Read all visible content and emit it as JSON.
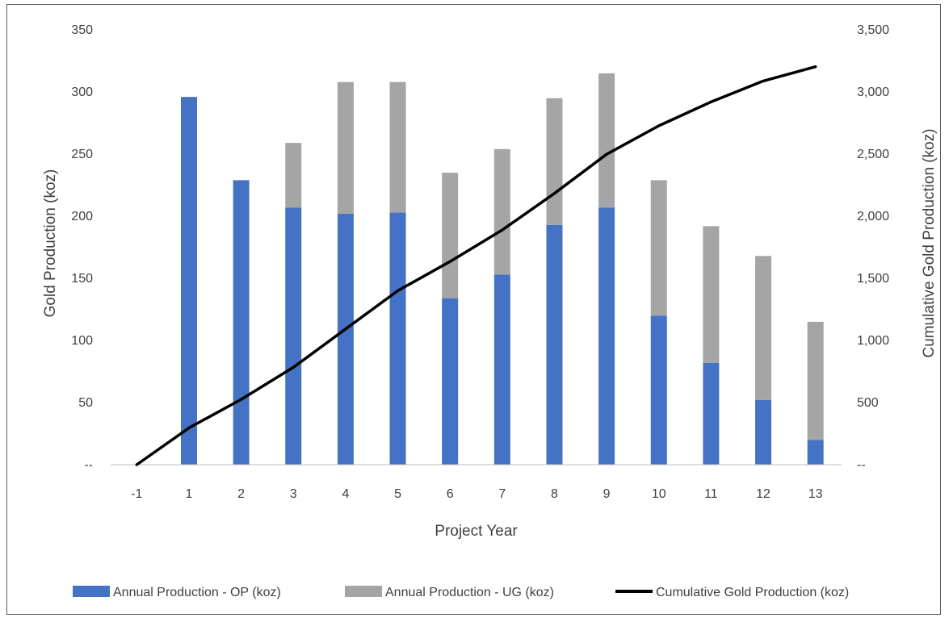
{
  "chart_data": {
    "type": "bar",
    "stacked": true,
    "categories": [
      "-1",
      "1",
      "2",
      "3",
      "4",
      "5",
      "6",
      "7",
      "8",
      "9",
      "10",
      "11",
      "12",
      "13"
    ],
    "series": [
      {
        "name": "Annual Production - OP (koz)",
        "type": "bar",
        "axis": "left",
        "color": "#4472C4",
        "values": [
          0,
          296,
          229,
          207,
          202,
          203,
          134,
          153,
          193,
          207,
          120,
          82,
          52,
          20
        ]
      },
      {
        "name": "Annual Production - UG (koz)",
        "type": "bar",
        "axis": "left",
        "color": "#A5A5A5",
        "values": [
          0,
          0,
          0,
          52,
          106,
          105,
          101,
          101,
          102,
          108,
          109,
          110,
          116,
          95
        ]
      },
      {
        "name": "Cumulative Gold Production (koz)",
        "type": "line",
        "axis": "right",
        "color": "#000000",
        "values": [
          0,
          296,
          525,
          784,
          1092,
          1400,
          1635,
          1889,
          2184,
          2499,
          2728,
          2920,
          3088,
          3203
        ]
      }
    ],
    "xlabel": "Project Year",
    "ylabel": "Gold Production (koz)",
    "y2label": "Cumulative Gold Production (koz)",
    "ylim": [
      0,
      350
    ],
    "y2lim": [
      0,
      3500
    ],
    "yticks": [
      "--",
      "50",
      "100",
      "150",
      "200",
      "250",
      "300",
      "350"
    ],
    "y2ticks": [
      "--",
      "500",
      "1,000",
      "1,500",
      "2,000",
      "2,500",
      "3,000",
      "3,500"
    ],
    "grid": false,
    "legend_position": "bottom"
  }
}
